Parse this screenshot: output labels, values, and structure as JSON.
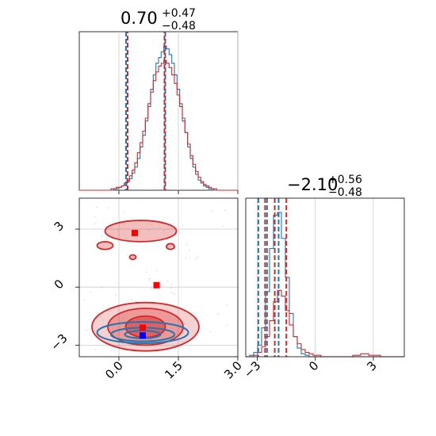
{
  "chart_data": {
    "type": "corner",
    "colors": {
      "blue": "#1f77b4",
      "red": "#d62728",
      "marker_blue": "#0000ff",
      "marker_red": "#ff0000",
      "grid": "#cccccc"
    },
    "grid": true,
    "titles": [
      {
        "main": "0.70",
        "upper": "+0.47",
        "lower": "−0.48"
      },
      {
        "main": "−2.10",
        "upper": "+0.56",
        "lower": "−0.48"
      }
    ],
    "param1": {
      "range": [
        -1.0,
        3.0
      ],
      "ticks": [
        "0.0",
        "1.5",
        "3.0"
      ],
      "tick_values": [
        0.0,
        1.5,
        3.0
      ]
    },
    "param2": {
      "range": [
        -3.6,
        4.6
      ],
      "ticks": [
        "−3",
        "0",
        "3"
      ],
      "tick_values": [
        -3,
        0,
        3
      ]
    },
    "hist1": {
      "blue_quantiles": [
        0.18,
        1.17
      ],
      "red_quantiles": [
        0.22,
        1.15
      ],
      "blue": [
        0,
        0,
        0,
        0,
        0,
        0,
        0,
        0,
        0,
        0,
        0,
        0,
        0,
        1,
        1,
        2,
        3,
        4,
        6,
        8,
        12,
        16,
        22,
        30,
        38,
        48,
        58,
        70,
        80,
        88,
        92,
        96,
        100,
        98,
        94,
        88,
        80,
        70,
        60,
        50,
        40,
        30,
        22,
        16,
        11,
        7,
        5,
        3,
        2,
        1,
        1,
        0,
        0,
        0,
        0,
        0,
        0,
        0,
        0,
        0
      ],
      "red": [
        0,
        0,
        0,
        0,
        0,
        0,
        0,
        0,
        0,
        0,
        0,
        0,
        1,
        1,
        2,
        2,
        3,
        5,
        7,
        10,
        14,
        19,
        26,
        33,
        41,
        50,
        60,
        68,
        76,
        82,
        86,
        88,
        90,
        88,
        85,
        80,
        74,
        66,
        58,
        48,
        40,
        32,
        24,
        18,
        13,
        9,
        6,
        4,
        3,
        2,
        1,
        1,
        0,
        0,
        0,
        0,
        0,
        0,
        0,
        0
      ]
    },
    "hist2": {
      "blue_quantiles": [
        -2.95,
        -2.5,
        -1.9
      ],
      "red_quantiles": [
        -2.6,
        -2.1,
        -1.5
      ],
      "blue": [
        0,
        1,
        3,
        8,
        20,
        45,
        75,
        98,
        100,
        82,
        55,
        30,
        14,
        6,
        2,
        1,
        0,
        0,
        0,
        0,
        0,
        0,
        0,
        0,
        0,
        0,
        0,
        0,
        0,
        0,
        0,
        0,
        0,
        0,
        0,
        0,
        0,
        0,
        0,
        0
      ],
      "red": [
        0,
        0,
        1,
        3,
        7,
        14,
        25,
        38,
        46,
        42,
        32,
        22,
        14,
        9,
        5,
        3,
        2,
        1,
        1,
        0,
        0,
        0,
        0,
        0,
        0,
        0,
        0,
        1,
        1,
        2,
        2,
        1,
        1,
        1,
        0,
        0,
        0,
        0,
        0,
        0
      ]
    },
    "scatter": {
      "red_markers": [
        [
          0.4,
          2.8
        ],
        [
          0.95,
          0.1
        ],
        [
          0.6,
          -2.1
        ]
      ],
      "blue_markers": [
        [
          0.6,
          -2.5
        ]
      ],
      "red_levels": [
        {
          "center": [
            0.67,
            -2.05
          ],
          "rx": 0.5,
          "ry": 0.55,
          "fill_opacity": 0.85
        },
        {
          "center": [
            0.67,
            -2.05
          ],
          "rx": 0.95,
          "ry": 0.95,
          "fill_opacity": 0.55
        },
        {
          "center": [
            0.67,
            -2.05
          ],
          "rx": 1.35,
          "ry": 1.25,
          "fill_opacity": 0.35
        }
      ],
      "red_islands": [
        {
          "center": [
            0.55,
            2.9
          ],
          "rx": 0.9,
          "ry": 0.55
        },
        {
          "center": [
            -0.35,
            2.15
          ],
          "rx": 0.2,
          "ry": 0.2
        },
        {
          "center": [
            0.35,
            1.55
          ],
          "rx": 0.08,
          "ry": 0.12
        },
        {
          "center": [
            1.3,
            2.1
          ],
          "rx": 0.1,
          "ry": 0.15
        }
      ],
      "blue_levels": [
        {
          "center": [
            0.6,
            -2.45
          ],
          "rx": 0.45,
          "ry": 0.2
        },
        {
          "center": [
            0.6,
            -2.45
          ],
          "rx": 0.8,
          "ry": 0.35
        },
        {
          "center": [
            0.6,
            -2.35
          ],
          "rx": 1.15,
          "ry": 0.55
        }
      ]
    }
  }
}
